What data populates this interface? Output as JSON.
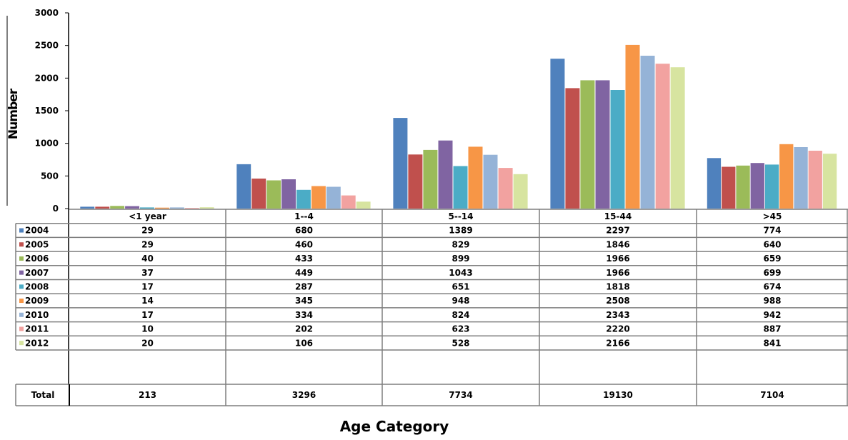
{
  "chart_data": {
    "type": "bar",
    "ylabel": "Number",
    "xlabel": "Age Category",
    "ylim": [
      0,
      3000
    ],
    "yticks": [
      "0",
      "500",
      "1000",
      "1500",
      "2000",
      "2500",
      "3000"
    ],
    "categories": [
      "<1 year",
      "1--4",
      "5--14",
      "15-44",
      ">45"
    ],
    "series": [
      {
        "name": "2004",
        "color": "#4F81BD",
        "values": [
          29,
          680,
          1389,
          2297,
          774
        ],
        "labels": [
          "29",
          "680",
          "1389",
          "2297",
          "774"
        ]
      },
      {
        "name": "2005",
        "color": "#C0504D",
        "values": [
          29,
          460,
          829,
          1846,
          640
        ],
        "labels": [
          "29",
          "460",
          "829",
          "1846",
          "640"
        ]
      },
      {
        "name": "2006",
        "color": "#9BBB59",
        "values": [
          40,
          433,
          899,
          1966,
          659
        ],
        "labels": [
          "40",
          "433",
          "899",
          "1966",
          "659"
        ]
      },
      {
        "name": "2007",
        "color": "#8064A2",
        "values": [
          37,
          449,
          1043,
          1966,
          699
        ],
        "labels": [
          "37",
          "449",
          "1043",
          "1966",
          "699"
        ]
      },
      {
        "name": "2008",
        "color": "#4BACC6",
        "values": [
          17,
          287,
          651,
          1818,
          674
        ],
        "labels": [
          "17",
          "287",
          "651",
          "1818",
          "674"
        ]
      },
      {
        "name": "2009",
        "color": "#F79646",
        "values": [
          14,
          345,
          948,
          2508,
          988
        ],
        "labels": [
          "14",
          "345",
          "948",
          "2508",
          "988"
        ]
      },
      {
        "name": "2010",
        "color": "#95B3D7",
        "values": [
          17,
          334,
          824,
          2343,
          942
        ],
        "labels": [
          "17",
          "334",
          "824",
          "2343",
          "942"
        ]
      },
      {
        "name": "2011",
        "color": "#F2A2A0",
        "values": [
          10,
          202,
          623,
          2220,
          887
        ],
        "labels": [
          "10",
          "202",
          "623",
          "2220",
          "887"
        ]
      },
      {
        "name": "2012",
        "color": "#D7E4A0",
        "values": [
          20,
          106,
          528,
          2166,
          841
        ],
        "labels": [
          "20",
          "106",
          "528",
          "2166",
          "841"
        ]
      }
    ],
    "total": {
      "label": "Total",
      "values": [
        "213",
        "3296",
        "7734",
        "19130",
        "7104"
      ]
    },
    "legend": "in data table (left of rows)",
    "grid": false
  }
}
